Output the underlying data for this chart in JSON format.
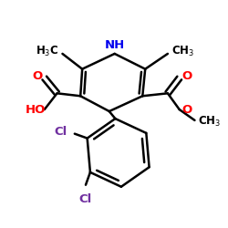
{
  "bg_color": "#ffffff",
  "bond_color": "#000000",
  "bond_lw": 1.8,
  "figsize": [
    2.5,
    2.5
  ],
  "dpi": 100,
  "xlim": [
    0,
    250
  ],
  "ylim": [
    0,
    250
  ]
}
